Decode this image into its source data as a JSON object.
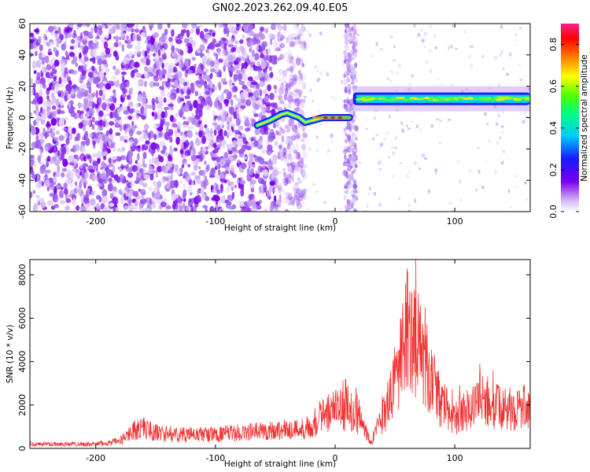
{
  "title": "GN02.2023.262.09.40.E05",
  "chart_data": [
    {
      "type": "heatmap",
      "xlabel": "Height of straight line (km)",
      "ylabel": "Frequency (Hz)",
      "xlim": [
        -255,
        163
      ],
      "ylim": [
        -60,
        60
      ],
      "x_ticks": [
        -200,
        -100,
        0,
        100
      ],
      "y_ticks": [
        60,
        40,
        20,
        0,
        -20,
        -40,
        -60
      ],
      "colorbar": {
        "label": "Normalized spectral amplitude",
        "range": [
          0.0,
          0.9
        ],
        "ticks": [
          0.0,
          0.2,
          0.4,
          0.6,
          0.8
        ]
      },
      "features": [
        {
          "name": "noise region",
          "x_range": [
            -255,
            -35
          ],
          "y_range": [
            -60,
            60
          ],
          "amplitude": 0.05
        },
        {
          "name": "vertical stripe",
          "x_range": [
            8,
            18
          ],
          "y_range": [
            -60,
            60
          ],
          "amplitude": 0.04
        },
        {
          "name": "wavy signal",
          "x_points": [
            -65,
            -55,
            -45,
            -40,
            -30,
            -25,
            -15,
            -10,
            0,
            12
          ],
          "y_points": [
            -5,
            -2,
            2,
            3,
            0,
            -3,
            -1,
            0,
            0,
            0
          ],
          "amplitude": 0.75
        },
        {
          "name": "steady signal band",
          "x_range": [
            15,
            163
          ],
          "y_center": 12,
          "y_width": 8,
          "amplitude": 0.45
        }
      ]
    },
    {
      "type": "line",
      "xlabel": "Height of straight line (km)",
      "ylabel": "SNR (10 * v/v)",
      "xlim": [
        -255,
        163
      ],
      "ylim": [
        0,
        8700
      ],
      "x_ticks": [
        -200,
        -100,
        0,
        100
      ],
      "y_ticks": [
        0,
        2000,
        4000,
        6000,
        8000
      ],
      "color": "#f03232",
      "envelope": {
        "x": [
          -255,
          -200,
          -180,
          -170,
          -160,
          -150,
          -130,
          -110,
          -100,
          -80,
          -60,
          -40,
          -30,
          -20,
          -10,
          0,
          10,
          20,
          30,
          40,
          50,
          55,
          60,
          65,
          70,
          75,
          80,
          90,
          100,
          110,
          120,
          130,
          140,
          150,
          163
        ],
        "y": [
          250,
          250,
          400,
          1000,
          1200,
          900,
          800,
          800,
          800,
          900,
          1000,
          1100,
          1100,
          1300,
          1900,
          2200,
          2200,
          1800,
          400,
          1800,
          3500,
          5000,
          6500,
          7000,
          5800,
          4500,
          3500,
          2500,
          1800,
          2200,
          2800,
          2600,
          2200,
          2300,
          2400
        ]
      }
    }
  ]
}
